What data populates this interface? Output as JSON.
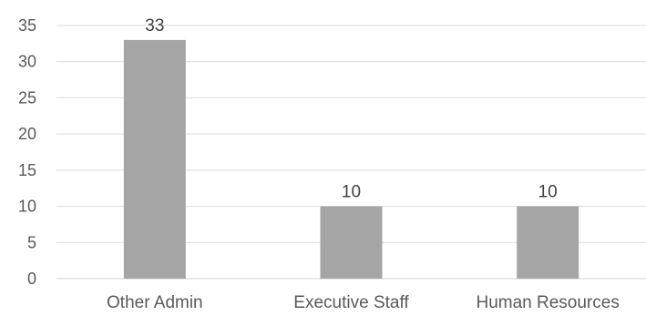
{
  "chart_data": {
    "type": "bar",
    "categories": [
      "Other Admin",
      "Executive Staff",
      "Human Resources"
    ],
    "values": [
      33,
      10,
      10
    ],
    "data_labels": [
      "33",
      "10",
      "10"
    ],
    "title": "",
    "xlabel": "",
    "ylabel": "",
    "ylim": [
      0,
      35
    ],
    "yticks": [
      0,
      5,
      10,
      15,
      20,
      25,
      30,
      35
    ],
    "grid": true,
    "legend": "none",
    "colors": {
      "bar": "#a5a5a5",
      "grid": "#d9d9d9",
      "text": "#595959"
    }
  }
}
